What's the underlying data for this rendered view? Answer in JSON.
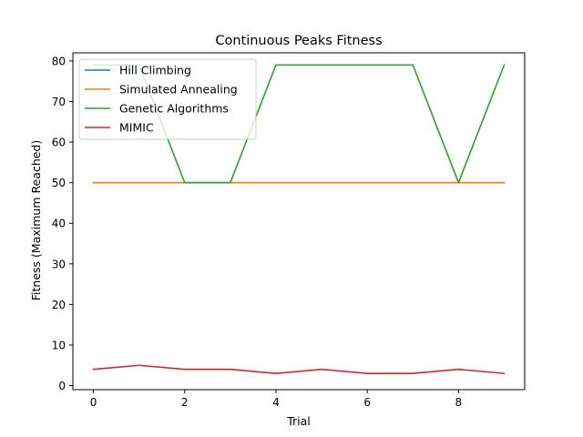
{
  "chart_data": {
    "type": "line",
    "title": "Continuous Peaks Fitness",
    "xlabel": "Trial",
    "ylabel": "Fitness (Maximum Reached)",
    "x": [
      0,
      1,
      2,
      3,
      4,
      5,
      6,
      7,
      8,
      9
    ],
    "xlim": [
      -0.45,
      9.45
    ],
    "ylim": [
      -1,
      82
    ],
    "xticks": [
      0,
      2,
      4,
      6,
      8
    ],
    "yticks": [
      0,
      10,
      20,
      30,
      40,
      50,
      60,
      70,
      80
    ],
    "grid": false,
    "legend_position": "upper-left",
    "series": [
      {
        "name": "Hill Climbing",
        "color": "#1f77b4",
        "values": [
          50,
          50,
          50,
          50,
          50,
          50,
          50,
          50,
          50,
          50
        ]
      },
      {
        "name": "Simulated Annealing",
        "color": "#ff7f0e",
        "values": [
          50,
          50,
          50,
          50,
          50,
          50,
          50,
          50,
          50,
          50
        ]
      },
      {
        "name": "Genetic Algorithms",
        "color": "#2ca02c",
        "values": [
          79,
          79,
          50,
          50,
          79,
          79,
          79,
          79,
          50,
          79
        ]
      },
      {
        "name": "MIMIC",
        "color": "#d62728",
        "values": [
          4,
          5,
          4,
          4,
          3,
          4,
          3,
          3,
          4,
          3
        ]
      }
    ]
  }
}
